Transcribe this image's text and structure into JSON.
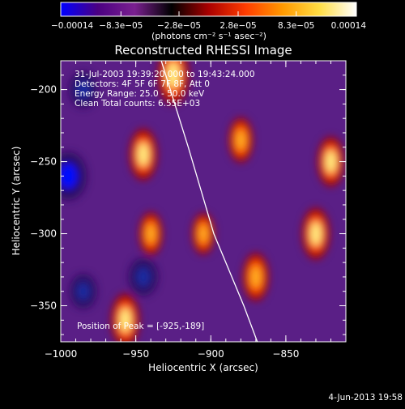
{
  "chart_data": {
    "type": "heatmap",
    "title": "Reconstructed RHESSI Image",
    "xlabel": "Heliocentric X (arcsec)",
    "ylabel": "Heliocentric Y (arcsec)",
    "xlim": [
      -1000,
      -810
    ],
    "ylim": [
      -375,
      -180
    ],
    "x_ticks": [
      -1000,
      -950,
      -900,
      -850
    ],
    "x_tick_labels": [
      "−1000",
      "−950",
      "−900",
      "−850"
    ],
    "y_ticks": [
      -350,
      -300,
      -250,
      -200
    ],
    "y_tick_labels": [
      "−350",
      "−300",
      "−250",
      "−200"
    ],
    "colorbar": {
      "range": [
        -0.00014,
        0.00014
      ],
      "ticks": [
        -0.00014,
        -8.3e-05,
        -2.8e-05,
        2.8e-05,
        8.3e-05,
        0.00014
      ],
      "tick_labels": [
        "−0.00014",
        "−8.3e−05",
        "−2.8e−05",
        "2.8e−05",
        "8.3e−05",
        "0.00014"
      ],
      "unit_text": "(photons cm⁻² s⁻¹ asec⁻²)",
      "colormap": [
        "#0000ff",
        "#4b0082",
        "#7a2090",
        "#000000",
        "#aa0000",
        "#ff3c00",
        "#ff9900",
        "#ffdd44",
        "#ffffff"
      ]
    },
    "info_lines": [
      "31-Jul-2003 19:39:20.000 to 19:43:24.000",
      "Detectors: 4F 5F 6F 7F 8F, Att 0",
      "Energy Range: 25.0 - 50.0 keV",
      "Clean    Total counts: 6.55E+03"
    ],
    "peak_label": "Position of Peak = [-925,-189]",
    "peak": [
      -925,
      -189
    ],
    "limb_curve": [
      [
        -933,
        -180
      ],
      [
        -915,
        -240
      ],
      [
        -898,
        -300
      ],
      [
        -878,
        -350
      ],
      [
        -869,
        -375
      ]
    ],
    "hot_spots": [
      {
        "x": -925,
        "y": -190,
        "intensity": 1.0
      },
      {
        "x": -945,
        "y": -245,
        "intensity": 0.8
      },
      {
        "x": -957,
        "y": -360,
        "intensity": 0.85
      },
      {
        "x": -830,
        "y": -300,
        "intensity": 0.8
      },
      {
        "x": -880,
        "y": -235,
        "intensity": 0.6
      },
      {
        "x": -870,
        "y": -330,
        "intensity": 0.7
      },
      {
        "x": -820,
        "y": -250,
        "intensity": 0.75
      },
      {
        "x": -905,
        "y": -300,
        "intensity": 0.5
      },
      {
        "x": -940,
        "y": -300,
        "intensity": 0.55
      }
    ],
    "cold_spots": [
      {
        "x": -995,
        "y": -260,
        "intensity": 0.9
      },
      {
        "x": -985,
        "y": -200,
        "intensity": 0.5
      },
      {
        "x": -945,
        "y": -330,
        "intensity": 0.55
      },
      {
        "x": -985,
        "y": -340,
        "intensity": 0.45
      }
    ]
  },
  "timestamp": "4-Jun-2013 19:58"
}
